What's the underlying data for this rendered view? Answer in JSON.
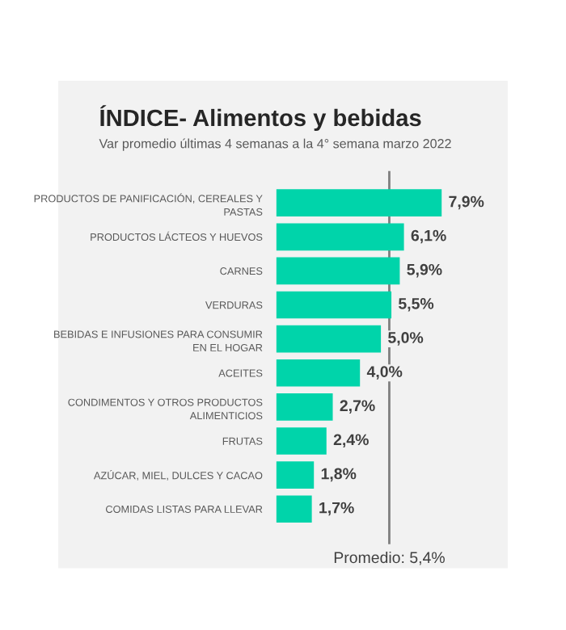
{
  "chart_data": {
    "type": "bar",
    "orientation": "horizontal",
    "title": "ÍNDICE- Alimentos y bebidas",
    "subtitle": "Var promedio últimas 4 semanas a la 4° semana marzo 2022",
    "categories": [
      "PRODUCTOS DE PANIFICACIÓN, CEREALES Y\nPASTAS",
      "PRODUCTOS LÁCTEOS Y HUEVOS",
      "CARNES",
      "VERDURAS",
      "BEBIDAS E INFUSIONES PARA CONSUMIR\nEN EL HOGAR",
      "ACEITES",
      "CONDIMENTOS Y OTROS PRODUCTOS\nALIMENTICIOS",
      "FRUTAS",
      "AZÚCAR, MIEL, DULCES Y CACAO",
      "COMIDAS LISTAS PARA LLEVAR"
    ],
    "values": [
      7.9,
      6.1,
      5.9,
      5.5,
      5.0,
      4.0,
      2.7,
      2.4,
      1.8,
      1.7
    ],
    "value_labels": [
      "7,9%",
      "6,1%",
      "5,9%",
      "5,5%",
      "5,0%",
      "4,0%",
      "2,7%",
      "2,4%",
      "1,8%",
      "1,7%"
    ],
    "color": "#00d4aa",
    "ref_lines": [
      {
        "axis": "x",
        "value": 5.4,
        "label": "Promedio: 5,4%",
        "color": "#7f7f7f"
      }
    ],
    "grid": false,
    "legend": false
  }
}
